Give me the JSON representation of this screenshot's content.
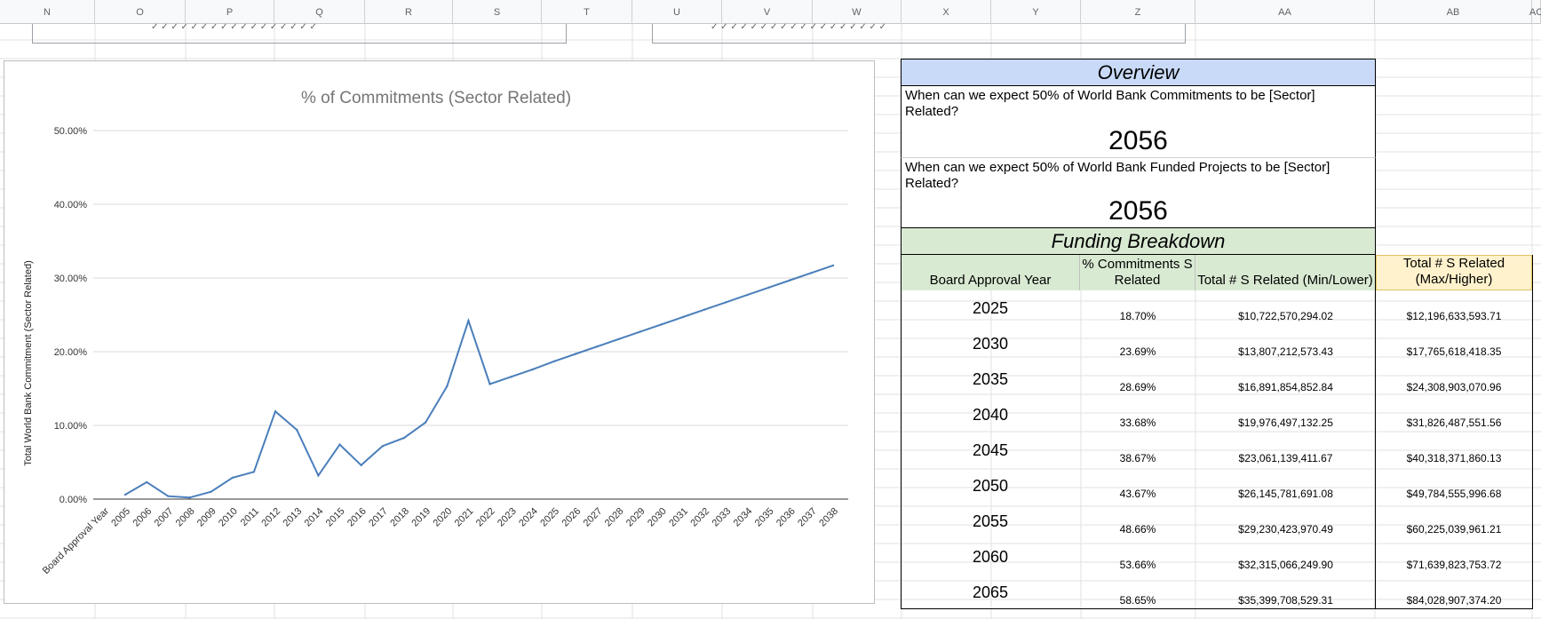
{
  "columns": [
    "N",
    "O",
    "P",
    "Q",
    "R",
    "S",
    "T",
    "U",
    "V",
    "W",
    "X",
    "Y",
    "Z",
    "AA",
    "AB",
    "AC"
  ],
  "colors": {
    "line": "#4a7ebb",
    "overview_header": "#c9daf8",
    "breakdown_header": "#d9ead3",
    "max_header": "#fff2cc",
    "grid": "#e2e2e2"
  },
  "chart_data": {
    "type": "line",
    "title": "% of Commitments (Sector Related)",
    "xlabel": "Board Approval Year",
    "ylabel": "Total World Bank Commitment (Sector Related)",
    "yticks": [
      "0.00%",
      "10.00%",
      "20.00%",
      "30.00%",
      "40.00%",
      "50.00%"
    ],
    "ylim": [
      0,
      50
    ],
    "grid": true,
    "categories": [
      "2005",
      "2006",
      "2007",
      "2008",
      "2009",
      "2010",
      "2011",
      "2012",
      "2013",
      "2014",
      "2015",
      "2016",
      "2017",
      "2018",
      "2019",
      "2020",
      "2021",
      "2022",
      "2023",
      "2024",
      "2025",
      "2026",
      "2027",
      "2028",
      "2029",
      "2030",
      "2031",
      "2032",
      "2033",
      "2034",
      "2035",
      "2036",
      "2037",
      "2038"
    ],
    "series": [
      {
        "values": [
          0.6,
          2.3,
          0.4,
          0.2,
          1.0,
          2.9,
          3.7,
          11.9,
          9.4,
          3.2,
          7.4,
          4.6,
          7.2,
          8.3,
          10.4,
          15.3,
          24.2,
          15.6,
          16.6,
          17.6,
          18.7,
          19.7,
          20.7,
          21.7,
          22.7,
          23.7,
          24.7,
          25.7,
          26.7,
          27.7,
          28.7,
          29.7,
          30.7,
          31.7
        ]
      }
    ]
  },
  "overview": {
    "title": "Overview",
    "q1": "When can we expect 50% of World Bank Commitments to be [Sector] Related?",
    "a1": "2056",
    "q2": "When can we expect 50% of World Bank Funded Projects to be [Sector] Related?",
    "a2": "2056"
  },
  "breakdown": {
    "title": "Funding Breakdown",
    "headers": [
      "Board Approval Year",
      "% Commitments S Related",
      "Total # S Related (Min/Lower)",
      "Total # S Related (Max/Higher)"
    ],
    "rows": [
      [
        "2025",
        "18.70%",
        "$10,722,570,294.02",
        "$12,196,633,593.71"
      ],
      [
        "2030",
        "23.69%",
        "$13,807,212,573.43",
        "$17,765,618,418.35"
      ],
      [
        "2035",
        "28.69%",
        "$16,891,854,852.84",
        "$24,308,903,070.96"
      ],
      [
        "2040",
        "33.68%",
        "$19,976,497,132.25",
        "$31,826,487,551.56"
      ],
      [
        "2045",
        "38.67%",
        "$23,061,139,411.67",
        "$40,318,371,860.13"
      ],
      [
        "2050",
        "43.67%",
        "$26,145,781,691.08",
        "$49,784,555,996.68"
      ],
      [
        "2055",
        "48.66%",
        "$29,230,423,970.49",
        "$60,225,039,961.21"
      ],
      [
        "2060",
        "53.66%",
        "$32,315,066,249.90",
        "$71,639,823,753.72"
      ],
      [
        "2065",
        "58.65%",
        "$35,399,708,529.31",
        "$84,028,907,374.20"
      ]
    ]
  }
}
